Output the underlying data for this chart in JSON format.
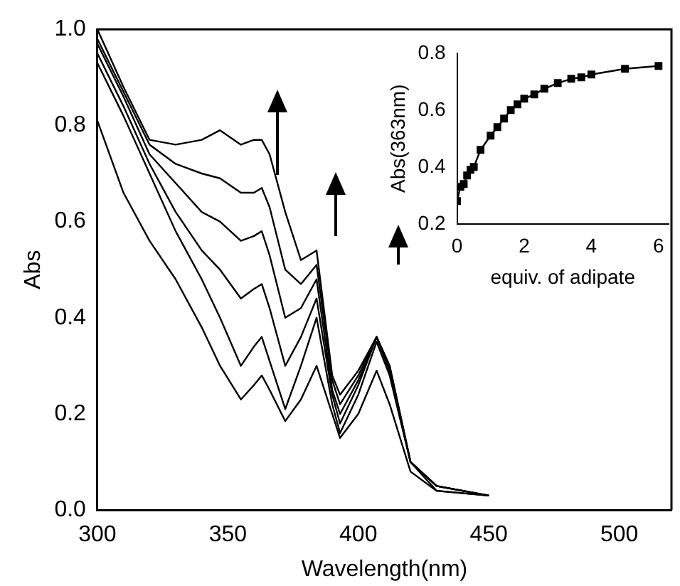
{
  "chart_data": [
    {
      "type": "line",
      "xlabel": "Wavelength(nm)",
      "ylabel": "Abs",
      "marker": "none",
      "grid": false,
      "x": [
        300,
        310,
        320,
        330,
        340,
        347,
        355,
        360,
        363,
        366,
        372,
        378,
        384,
        390,
        393,
        400,
        407,
        412,
        420,
        430,
        450
      ],
      "xlim": [
        300,
        520
      ],
      "xticks": [
        300,
        350,
        400,
        450,
        500
      ],
      "ylim": [
        0,
        1
      ],
      "yticks": [
        {
          "value": 0,
          "label": "0.0"
        },
        0.2,
        0.4,
        0.6,
        0.8,
        {
          "value": 1,
          "label": "1.0"
        }
      ],
      "series": [
        {
          "color": "#000000",
          "values": [
            0.81,
            0.66,
            0.56,
            0.48,
            0.38,
            0.3,
            0.23,
            0.26,
            0.28,
            0.25,
            0.185,
            0.23,
            0.3,
            0.2,
            0.15,
            0.2,
            0.29,
            0.22,
            0.08,
            0.04,
            0.03
          ]
        },
        {
          "color": "#000000",
          "values": [
            0.93,
            0.82,
            0.7,
            0.58,
            0.48,
            0.4,
            0.3,
            0.34,
            0.36,
            0.31,
            0.21,
            0.3,
            0.4,
            0.22,
            0.16,
            0.24,
            0.35,
            0.28,
            0.1,
            0.04,
            0.03
          ]
        },
        {
          "color": "#000000",
          "values": [
            0.95,
            0.84,
            0.72,
            0.62,
            0.54,
            0.5,
            0.44,
            0.46,
            0.47,
            0.42,
            0.3,
            0.36,
            0.44,
            0.24,
            0.18,
            0.26,
            0.36,
            0.29,
            0.1,
            0.05,
            0.03
          ]
        },
        {
          "color": "#000000",
          "values": [
            0.97,
            0.86,
            0.74,
            0.68,
            0.62,
            0.6,
            0.56,
            0.57,
            0.58,
            0.53,
            0.4,
            0.42,
            0.48,
            0.25,
            0.2,
            0.27,
            0.36,
            0.29,
            0.1,
            0.05,
            0.03
          ]
        },
        {
          "color": "#000000",
          "values": [
            0.98,
            0.87,
            0.76,
            0.72,
            0.7,
            0.69,
            0.66,
            0.66,
            0.67,
            0.63,
            0.5,
            0.47,
            0.51,
            0.27,
            0.22,
            0.28,
            0.36,
            0.3,
            0.1,
            0.05,
            0.03
          ]
        },
        {
          "color": "#000000",
          "values": [
            1.0,
            0.88,
            0.77,
            0.76,
            0.77,
            0.79,
            0.76,
            0.77,
            0.77,
            0.74,
            0.62,
            0.52,
            0.54,
            0.28,
            0.24,
            0.29,
            0.36,
            0.3,
            0.1,
            0.05,
            0.03
          ]
        }
      ]
    },
    {
      "type": "line",
      "xlabel": "equiv. of adipate",
      "ylabel": "Abs(363nm)",
      "marker": "square",
      "grid": false,
      "x": [
        0,
        0.1,
        0.2,
        0.3,
        0.4,
        0.5,
        0.7,
        1.0,
        1.2,
        1.4,
        1.6,
        1.8,
        2.0,
        2.3,
        2.6,
        3.0,
        3.4,
        3.7,
        4.0,
        5.0,
        6.0
      ],
      "xlim": [
        0,
        6.3
      ],
      "xticks": [
        0,
        2,
        4,
        6
      ],
      "ylim": [
        0.2,
        0.8
      ],
      "yticks": [
        0.2,
        0.4,
        0.6,
        0.8
      ],
      "series": [
        {
          "color": "#000000",
          "values": [
            0.28,
            0.33,
            0.34,
            0.37,
            0.39,
            0.4,
            0.46,
            0.51,
            0.54,
            0.57,
            0.6,
            0.62,
            0.64,
            0.655,
            0.675,
            0.695,
            0.71,
            0.715,
            0.725,
            0.745,
            0.755
          ]
        }
      ]
    }
  ]
}
